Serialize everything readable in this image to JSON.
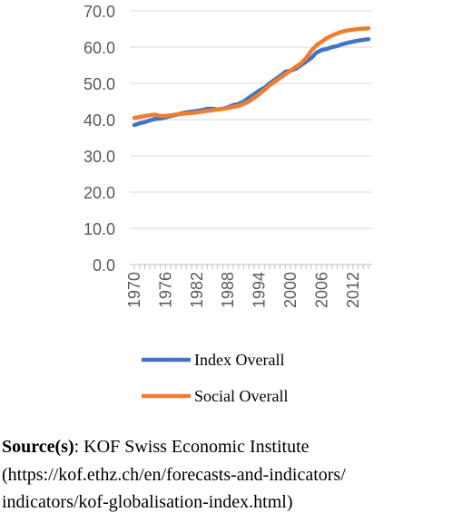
{
  "chart_data": {
    "type": "line",
    "categories": [
      "1970",
      null,
      null,
      null,
      null,
      null,
      "1976",
      null,
      null,
      null,
      null,
      null,
      "1982",
      null,
      null,
      null,
      null,
      null,
      "1988",
      null,
      null,
      null,
      null,
      null,
      "1994",
      null,
      null,
      null,
      null,
      null,
      "2000",
      null,
      null,
      null,
      null,
      null,
      "2006",
      null,
      null,
      null,
      null,
      null,
      "2012",
      null,
      null,
      null
    ],
    "series": [
      {
        "name": "Index Overall",
        "color": "#4472c4",
        "values": [
          38.5,
          39,
          39.3,
          39.8,
          40.2,
          40.3,
          40.6,
          41,
          41.3,
          41.7,
          42,
          42.2,
          42.4,
          42.6,
          43,
          43,
          42.8,
          43,
          43.4,
          44,
          44.3,
          45,
          46,
          47,
          48,
          48.8,
          50,
          51,
          52,
          53.2,
          53.5,
          54,
          55,
          56,
          57,
          58.5,
          59.2,
          59.5,
          60,
          60.3,
          60.8,
          61.2,
          61.5,
          61.8,
          62,
          62.2
        ]
      },
      {
        "name": "Social Overall",
        "color": "#ed7d31",
        "values": [
          40.5,
          40.7,
          41,
          41.2,
          41.4,
          41,
          41,
          41.2,
          41.4,
          41.6,
          41.7,
          41.8,
          42,
          42.2,
          42.4,
          42.6,
          42.8,
          43,
          43.2,
          43.5,
          43.8,
          44.3,
          45,
          46,
          47,
          48.2,
          49.5,
          50.5,
          51.5,
          52.5,
          53.5,
          54.5,
          55.5,
          57,
          59,
          60.5,
          61.5,
          62.5,
          63.2,
          63.8,
          64.3,
          64.6,
          64.8,
          65,
          65.1,
          65.2
        ]
      }
    ],
    "ylim": [
      0,
      70
    ],
    "yticks": [
      {
        "value": 0,
        "label": "0.0"
      },
      {
        "value": 10,
        "label": "10.0"
      },
      {
        "value": 20,
        "label": "20.0"
      },
      {
        "value": 30,
        "label": "30.0"
      },
      {
        "value": 40,
        "label": "40.0"
      },
      {
        "value": 50,
        "label": "50.0"
      },
      {
        "value": 60,
        "label": "60.0"
      },
      {
        "value": 70,
        "label": "70.0"
      }
    ],
    "grid": true,
    "legend": "bottom"
  },
  "source": {
    "label": "Source(s)",
    "lines": [
      ": KOF Swiss Economic Institute",
      "(https://kof.ethz.ch/en/forecasts-and-indicators/",
      "indicators/kof-globalisation-index.html)"
    ]
  }
}
